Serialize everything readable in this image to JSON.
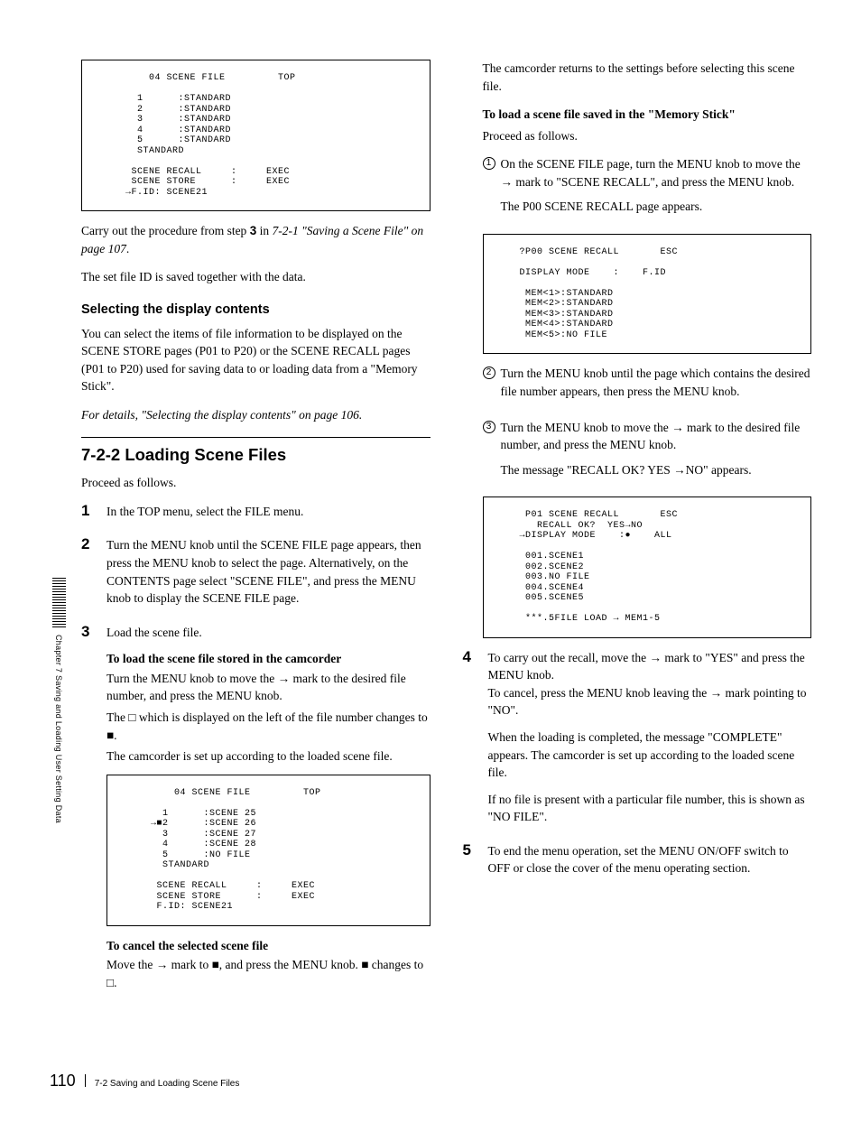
{
  "screens": {
    "scene_file_top": "    04 SCENE FILE         TOP\n\n  1      :STANDARD\n  2      :STANDARD\n  3      :STANDARD\n  4      :STANDARD\n  5      :STANDARD\n  STANDARD\n\n SCENE RECALL     :     EXEC\n SCENE STORE      :     EXEC\n→F.ID: SCENE21",
    "scene_file_loaded": "    04 SCENE FILE         TOP\n\n  1      :SCENE 25\n→■2      :SCENE 26\n  3      :SCENE 27\n  4      :SCENE 28\n  5      :NO FILE\n  STANDARD\n\n SCENE RECALL     :     EXEC\n SCENE STORE      :     EXEC\n F.ID: SCENE21",
    "p00_recall": "?P00 SCENE RECALL       ESC\n\nDISPLAY MODE    :    F.ID\n\n MEM<1>:STANDARD\n MEM<2>:STANDARD\n MEM<3>:STANDARD\n MEM<4>:STANDARD\n MEM<5>:NO FILE",
    "p01_recall": " P01 SCENE RECALL       ESC\n   RECALL OK?  YES→NO\n→DISPLAY MODE    :●    ALL\n\n 001.SCENE1\n 002.SCENE2\n 003.NO FILE\n 004.SCENE4\n 005.SCENE5\n\n ***.5FILE LOAD → MEM1-5"
  },
  "left": {
    "carry_out": "Carry out the procedure from step ",
    "carry_out_bold": "3",
    "carry_out_rest": " in ",
    "carry_out_ref": "7-2-1 \"Saving a Scene File\" on page 107",
    "carry_out_end": ".",
    "set_file": "The set file ID is saved together with the data.",
    "h_select": "Selecting the display contents",
    "select_body": "You can select the items of file information to be displayed on the SCENE STORE pages (P01 to P20) or the SCENE RECALL pages (P01 to P20) used for saving data to or loading data from a \"Memory Stick\".",
    "select_ref": "For details, \"Selecting the display contents\" on page 106.",
    "h_722": "7-2-2  Loading Scene Files",
    "proceed": "Proceed as follows.",
    "s1": "In the TOP menu, select the FILE menu.",
    "s2": "Turn the MENU knob until the SCENE FILE page appears, then press the MENU knob to select the page. Alternatively, on the CONTENTS page select \"SCENE FILE\", and press the MENU knob to display the SCENE FILE page.",
    "s3": "Load the scene file.",
    "s3_h1": "To load the scene file stored in the camcorder",
    "s3_p1_a": "Turn the MENU knob to move the ",
    "s3_p1_b": " mark to the desired file number, and press the MENU knob.",
    "s3_p2_a": "The ",
    "s3_p2_b": " which is displayed on the left of the file number changes to ",
    "s3_p2_c": ".",
    "s3_p3": "The camcorder is set up according to the loaded scene file.",
    "cancel_h": "To cancel the selected scene file",
    "cancel_a": "Move the ",
    "cancel_b": " mark to ",
    "cancel_c": ", and press the MENU knob. ",
    "cancel_d": " changes to ",
    "cancel_e": "."
  },
  "right": {
    "returns": "The camcorder returns to the settings before selecting this scene file.",
    "mem_h": "To load a scene file saved in the \"Memory Stick\"",
    "mem_proceed": "Proceed as follows.",
    "c1_a": "On the SCENE FILE page, turn the MENU knob to move the ",
    "c1_b": " mark to \"SCENE RECALL\", and press the MENU knob.",
    "c1_p2": "The P00 SCENE RECALL page appears.",
    "c2": "Turn the MENU knob until the page which contains the desired file number appears, then press the MENU knob.",
    "c3_a": "Turn the MENU knob to move the ",
    "c3_b": " mark to the desired file number, and press the MENU knob.",
    "c3_p2_a": "The message \"RECALL OK? YES ",
    "c3_p2_b": "NO\" appears.",
    "s4_a": "To carry out the recall, move the ",
    "s4_b": " mark to \"YES\" and press the MENU knob.",
    "s4_c": "To cancel, press the MENU knob leaving the ",
    "s4_d": " mark pointing to  \"NO\".",
    "s4_p2": "When the loading is completed, the message \"COMPLETE\" appears. The camcorder is set up according to the loaded scene file.",
    "s4_p3": "If no file is present with a particular file number, this is shown as \"NO FILE\".",
    "s5": "To end the menu operation, set the MENU ON/OFF switch to OFF or close the cover of the menu operating section."
  },
  "sidebar": "Chapter 7  Saving and Loading User Setting Data",
  "footer": {
    "page": "110",
    "section": "7-2 Saving and Loading Scene Files"
  }
}
